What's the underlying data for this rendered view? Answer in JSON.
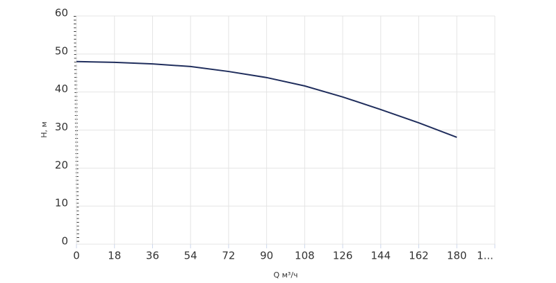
{
  "chart_data": {
    "type": "line",
    "x_label": "Q м³/ч",
    "y_label": "H, м",
    "x": [
      0,
      18,
      36,
      54,
      72,
      90,
      108,
      126,
      144,
      162,
      180
    ],
    "series": [
      {
        "color": "#1f2d5c",
        "values": [
          48,
          47.8,
          47.4,
          46.7,
          45.4,
          43.8,
          41.6,
          38.7,
          35.4,
          31.9,
          28.1
        ]
      }
    ],
    "xlim": [
      0,
      198
    ],
    "xticks": [
      0,
      18,
      36,
      54,
      72,
      90,
      108,
      126,
      144,
      162,
      180,
      {
        "value": 198,
        "label": "1..."
      }
    ],
    "ylim": [
      0,
      60
    ],
    "yticks": [
      0,
      10,
      20,
      30,
      40,
      50,
      60
    ],
    "grid": true
  }
}
